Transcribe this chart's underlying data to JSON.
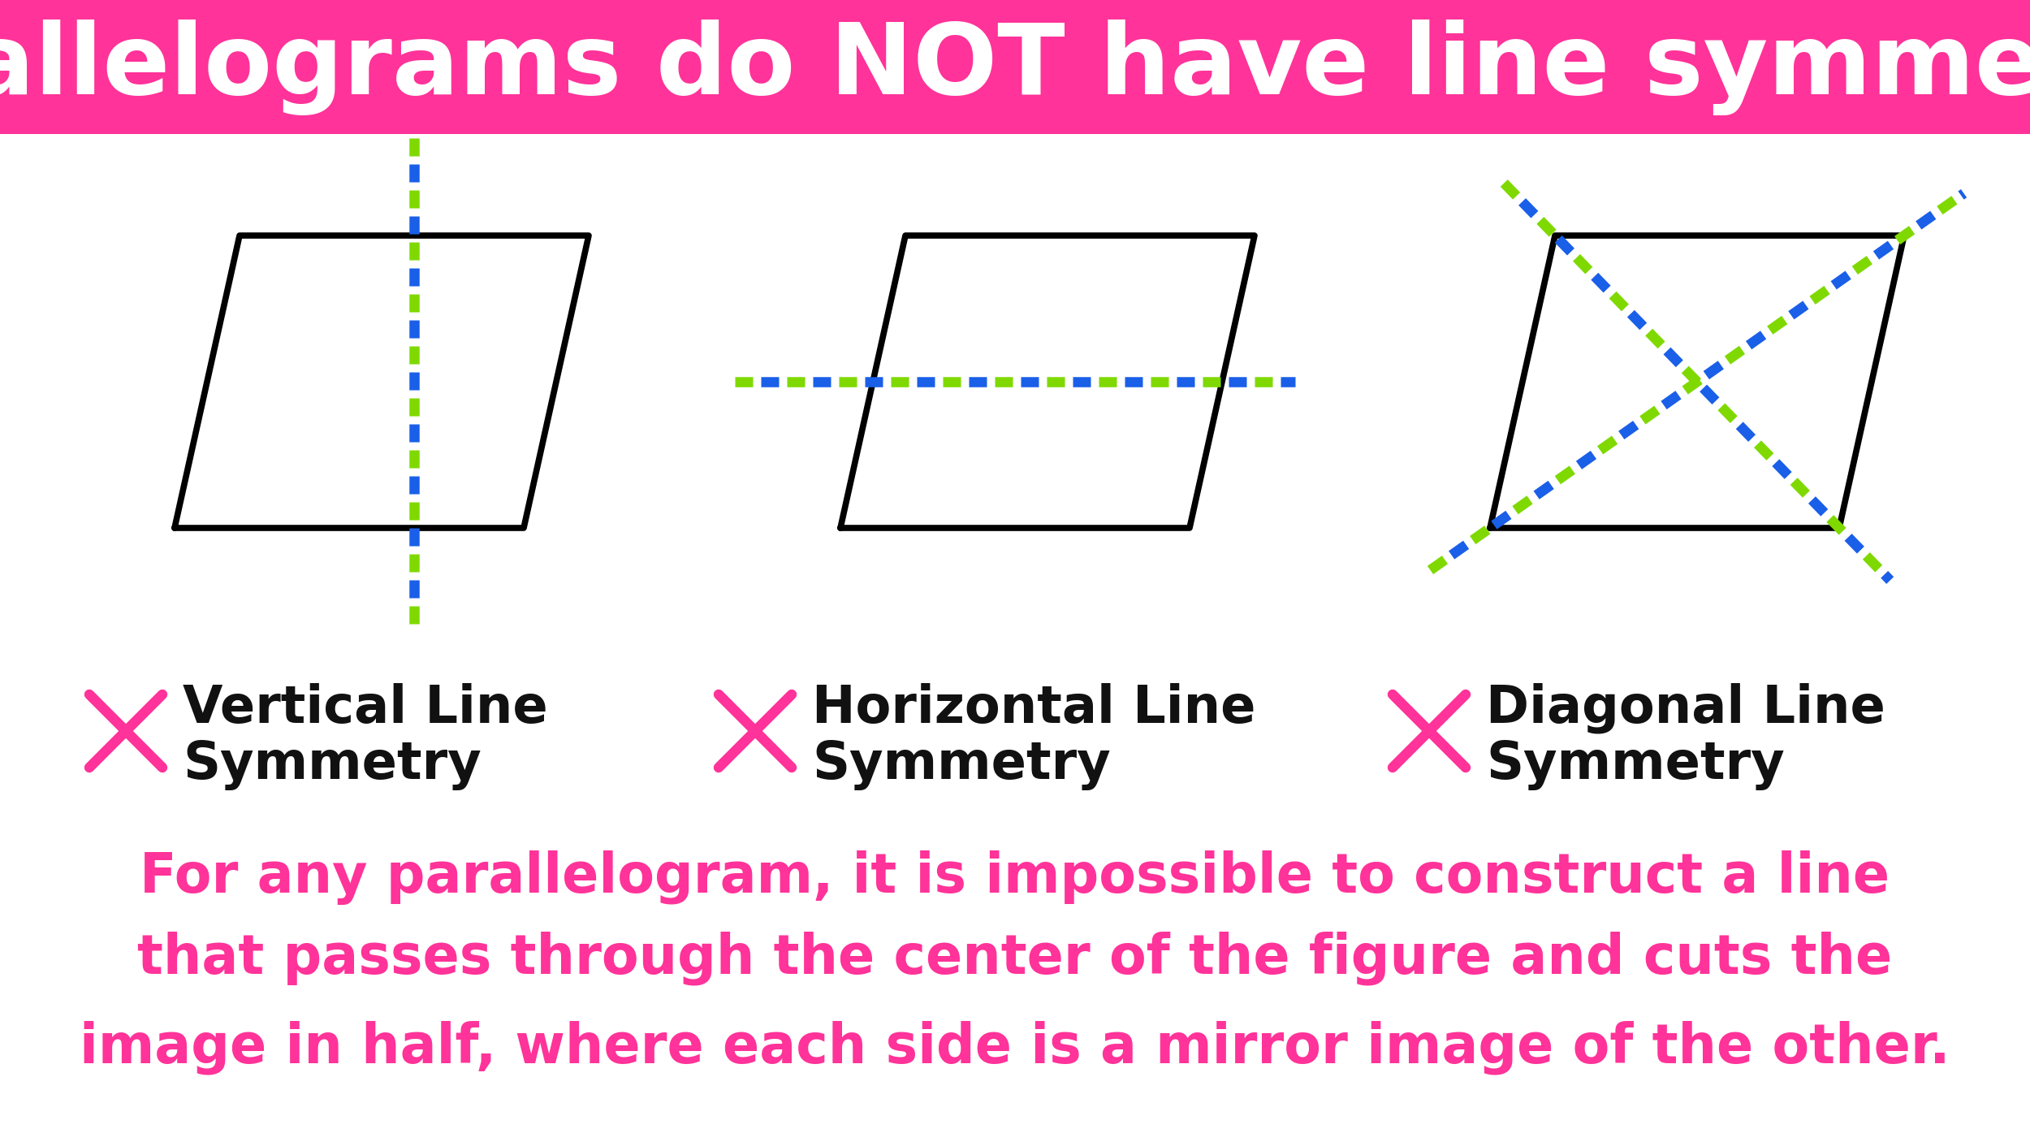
{
  "title": "Parallelograms do NOT have line symmetry!",
  "title_bg_color": "#FF3399",
  "title_text_color": "#FFFFFF",
  "bg_color": "#FFFFFF",
  "pink_color": "#FF3399",
  "black_color": "#111111",
  "blue_color": "#1A5FE8",
  "green_color": "#7FD900",
  "label1_line1": "Vertical Line",
  "label1_line2": "Symmetry",
  "label2_line1": "Horizontal Line",
  "label2_line2": "Symmetry",
  "label3_line1": "Diagonal Line",
  "label3_line2": "Symmetry",
  "bottom_text_lines": [
    "For any parallelogram, it is impossible to construct a line",
    "that passes through the center of the figure and cuts the",
    "image in half, where each side is a mirror image of the other."
  ]
}
